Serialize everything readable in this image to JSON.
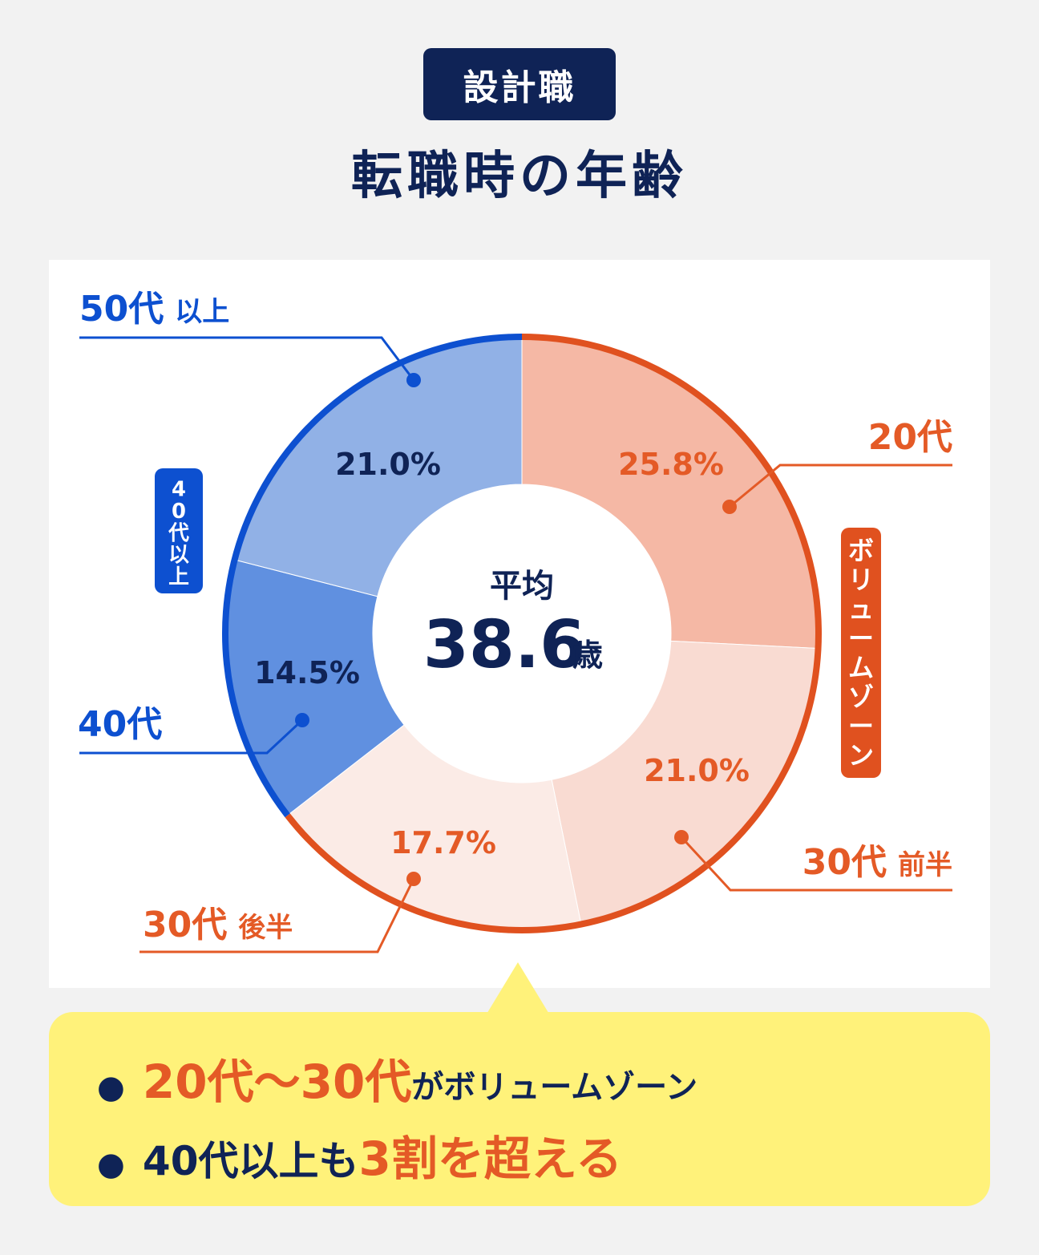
{
  "header": {
    "tag": "設計職",
    "title": "転職時の年齢"
  },
  "chart_data": {
    "type": "pie",
    "center_label": "平均",
    "center_value": "38.6",
    "center_unit": "歳",
    "slices": [
      {
        "label": "20代",
        "label_suffix": "",
        "value": 25.8,
        "value_label": "25.8%",
        "color": "#f5b8a5",
        "group": "volume"
      },
      {
        "label": "30代",
        "label_suffix": "前半",
        "value": 21.0,
        "value_label": "21.0%",
        "color": "#f9dbd2",
        "group": "volume"
      },
      {
        "label": "30代",
        "label_suffix": "後半",
        "value": 17.7,
        "value_label": "17.7%",
        "color": "#fbebe6",
        "group": "volume"
      },
      {
        "label": "40代",
        "label_suffix": "",
        "value": 14.5,
        "value_label": "14.5%",
        "color": "#6090e0",
        "group": "over40"
      },
      {
        "label": "50代",
        "label_suffix": "以上",
        "value": 21.0,
        "value_label": "21.0%",
        "color": "#91b1e6",
        "group": "over40"
      }
    ],
    "groups": {
      "volume": {
        "label": "ボリュームゾーン",
        "color": "#e0511f"
      },
      "over40": {
        "label": "40代以上",
        "color": "#0d50d0"
      }
    }
  },
  "colors": {
    "navy": "#0f2356",
    "orange_text": "#e45a26",
    "blue_text": "#0d50d0",
    "callout_bg": "#fff27a"
  },
  "summary": {
    "line1": {
      "highlight": "20代〜30代",
      "rest": "がボリュームゾーン"
    },
    "line2": {
      "lead": "40代以上も",
      "highlight": "3割を超える"
    }
  }
}
